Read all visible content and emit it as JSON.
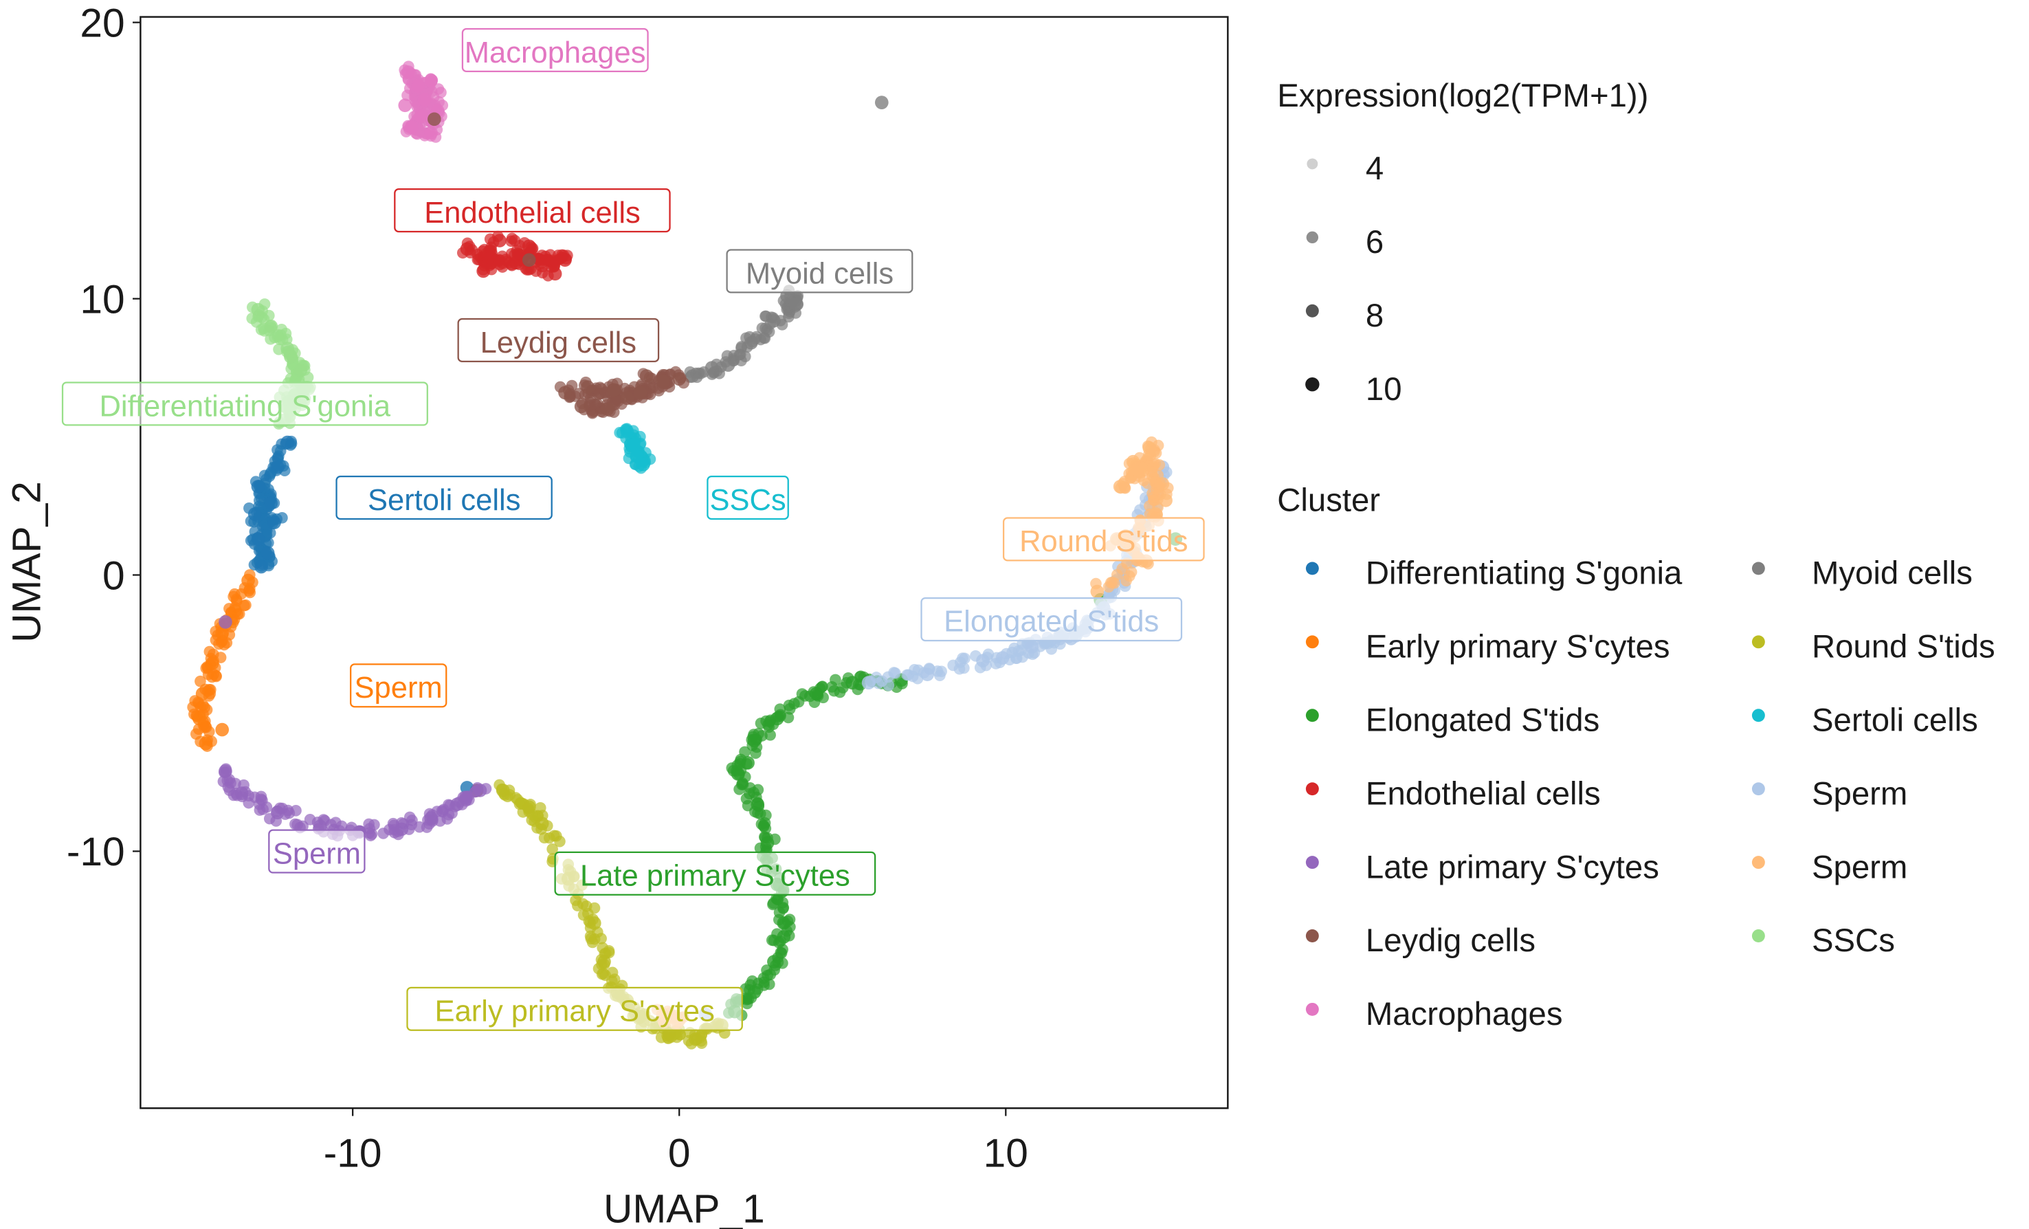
{
  "chart_data": {
    "type": "scatter",
    "title": "",
    "xlabel": "UMAP_1",
    "ylabel": "UMAP_2",
    "xlim": [
      -16.5,
      16.8
    ],
    "ylim": [
      -19.3,
      20.2
    ],
    "xticks": [
      -10,
      0,
      10
    ],
    "yticks": [
      -10,
      0,
      10,
      20
    ],
    "xtick_labels": [
      "-10",
      "0",
      "10"
    ],
    "ytick_labels": [
      "-10",
      "0",
      "10",
      "20"
    ],
    "grid": false,
    "legend_position": "right",
    "size_legend": {
      "title": "Expression(log2(TPM+1))",
      "values": [
        4,
        6,
        8,
        10
      ],
      "labels": [
        "4",
        "6",
        "8",
        "10"
      ]
    },
    "color_legend": {
      "title": "Cluster",
      "entries": [
        {
          "label": "Differentiating S'gonia",
          "color": "#1f77b4"
        },
        {
          "label": "Early primary S'cytes",
          "color": "#ff7f0e"
        },
        {
          "label": "Elongated S'tids",
          "color": "#2ca02c"
        },
        {
          "label": "Endothelial cells",
          "color": "#d62728"
        },
        {
          "label": "Late primary S'cytes",
          "color": "#9467bd"
        },
        {
          "label": "Leydig cells",
          "color": "#8c564b"
        },
        {
          "label": "Macrophages",
          "color": "#e377c2"
        },
        {
          "label": "Myoid cells",
          "color": "#7f7f7f"
        },
        {
          "label": "Round S'tids",
          "color": "#bcbd22"
        },
        {
          "label": "Sertoli cells",
          "color": "#17becf"
        },
        {
          "label": "Sperm",
          "color": "#aec7e8"
        },
        {
          "label": "Sperm",
          "color": "#ffbb78"
        },
        {
          "label": "SSCs",
          "color": "#98df8a"
        }
      ]
    },
    "series": [
      {
        "name": "Macrophages",
        "color": "#e377c2",
        "label_anchor": [
          -3.8,
          18.9
        ],
        "points": [
          [
            -8.3,
            18.2
          ],
          [
            -8.0,
            17.7
          ],
          [
            -7.8,
            17.2
          ],
          [
            -7.9,
            16.6
          ],
          [
            -8.2,
            16.2
          ],
          [
            -7.6,
            16.0
          ],
          [
            -7.4,
            16.8
          ],
          [
            -7.6,
            17.9
          ],
          [
            -8.4,
            17.0
          ]
        ]
      },
      {
        "name": "Endothelial cells",
        "color": "#d62728",
        "label_anchor": [
          -4.5,
          13.1
        ],
        "points": [
          [
            -6.5,
            11.8
          ],
          [
            -5.8,
            11.5
          ],
          [
            -5.0,
            11.3
          ],
          [
            -4.2,
            11.2
          ],
          [
            -3.5,
            11.4
          ],
          [
            -5.5,
            12.1
          ],
          [
            -6.0,
            11.0
          ],
          [
            -4.6,
            11.9
          ],
          [
            -3.8,
            10.9
          ]
        ]
      },
      {
        "name": "Myoid cells",
        "color": "#7f7f7f",
        "label_anchor": [
          4.3,
          10.9
        ],
        "points": [
          [
            0.4,
            7.2
          ],
          [
            1.5,
            7.6
          ],
          [
            2.2,
            8.4
          ],
          [
            2.9,
            9.2
          ],
          [
            3.6,
            9.8
          ],
          [
            3.3,
            10.1
          ],
          [
            1.0,
            7.5
          ],
          [
            6.2,
            17.1
          ]
        ]
      },
      {
        "name": "Leydig cells",
        "color": "#8c564b",
        "label_anchor": [
          -3.7,
          8.4
        ],
        "points": [
          [
            -3.5,
            6.6
          ],
          [
            -2.8,
            6.8
          ],
          [
            -2.0,
            6.7
          ],
          [
            -1.2,
            6.6
          ],
          [
            -0.5,
            7.0
          ],
          [
            -3.0,
            6.1
          ],
          [
            -2.2,
            6.0
          ],
          [
            -1.6,
            6.4
          ],
          [
            0.0,
            7.1
          ],
          [
            -1.0,
            7.2
          ],
          [
            -7.5,
            16.5
          ],
          [
            -4.6,
            11.4
          ],
          [
            -6.2,
            -7.8
          ]
        ]
      },
      {
        "name": "Sertoli cells",
        "color": "#17becf",
        "label_anchor": [
          2.1,
          2.7
        ],
        "points": [
          [
            -1.6,
            5.2
          ],
          [
            -1.4,
            4.7
          ],
          [
            -1.3,
            4.3
          ],
          [
            -1.1,
            4.0
          ]
        ]
      },
      {
        "name": "SSCs",
        "color": "#98df8a",
        "label_anchor": [
          -13.3,
          6.1
        ],
        "points": [
          [
            -12.9,
            9.6
          ],
          [
            -12.5,
            9.0
          ],
          [
            -12.0,
            8.2
          ],
          [
            -11.6,
            7.4
          ],
          [
            -11.5,
            6.7
          ],
          [
            -11.8,
            6.3
          ],
          [
            -12.1,
            5.6
          ],
          [
            -11.9,
            7.9
          ]
        ]
      },
      {
        "name": "Differentiating S'gonia",
        "color": "#1f77b4",
        "label_anchor": [
          -7.2,
          2.7
        ],
        "points": [
          [
            -12.0,
            4.8
          ],
          [
            -12.3,
            3.9
          ],
          [
            -12.9,
            3.2
          ],
          [
            -12.5,
            2.6
          ],
          [
            -13.0,
            2.2
          ],
          [
            -12.4,
            1.9
          ],
          [
            -12.9,
            1.3
          ],
          [
            -12.6,
            0.8
          ],
          [
            -12.8,
            0.3
          ],
          [
            -6.5,
            -7.7
          ]
        ]
      },
      {
        "name": "Early primary S'cytes",
        "color": "#ff7f0e",
        "label_anchor": [
          -8.6,
          -4.1
        ],
        "points": [
          [
            -13.2,
            -0.2
          ],
          [
            -13.6,
            -1.3
          ],
          [
            -14.0,
            -2.1
          ],
          [
            -14.3,
            -3.2
          ],
          [
            -14.6,
            -4.3
          ],
          [
            -14.7,
            -5.2
          ],
          [
            -14.5,
            -6.1
          ],
          [
            -13.9,
            -1.8
          ],
          [
            -14.0,
            -5.6
          ]
        ]
      },
      {
        "name": "Late primary S'cytes",
        "color": "#9467bd",
        "label_anchor": [
          -11.1,
          -10.1
        ],
        "points": [
          [
            -13.9,
            -7.1
          ],
          [
            -13.4,
            -7.9
          ],
          [
            -12.3,
            -8.6
          ],
          [
            -11.0,
            -9.1
          ],
          [
            -9.8,
            -9.3
          ],
          [
            -8.5,
            -9.2
          ],
          [
            -7.6,
            -8.8
          ],
          [
            -6.8,
            -8.3
          ],
          [
            -6.1,
            -7.8
          ],
          [
            -13.9,
            -1.7
          ]
        ]
      },
      {
        "name": "Round S'tids",
        "color": "#bcbd22",
        "label_anchor": [
          -3.2,
          -15.8
        ],
        "points": [
          [
            -5.4,
            -7.8
          ],
          [
            -4.6,
            -8.4
          ],
          [
            -4.2,
            -9.0
          ],
          [
            -3.4,
            -11.0
          ],
          [
            -2.6,
            -12.6
          ],
          [
            -2.3,
            -14.0
          ],
          [
            -1.9,
            -15.1
          ],
          [
            -1.2,
            -16.0
          ],
          [
            -0.3,
            -16.6
          ],
          [
            0.5,
            -16.8
          ],
          [
            1.3,
            -16.3
          ],
          [
            -1.6,
            -15.4
          ]
        ]
      },
      {
        "name": "Elongated S'tids",
        "color": "#2ca02c",
        "label_anchor": [
          1.1,
          -10.9
        ],
        "points": [
          [
            1.7,
            -15.8
          ],
          [
            2.3,
            -15.1
          ],
          [
            2.9,
            -14.0
          ],
          [
            3.2,
            -12.6
          ],
          [
            3.0,
            -11.2
          ],
          [
            2.7,
            -9.7
          ],
          [
            2.4,
            -8.3
          ],
          [
            1.8,
            -7.2
          ],
          [
            2.3,
            -6.0
          ],
          [
            3.0,
            -5.2
          ],
          [
            4.2,
            -4.3
          ],
          [
            5.3,
            -3.9
          ],
          [
            6.8,
            -3.8
          ],
          [
            2.1,
            -6.8
          ],
          [
            3.2,
            -13.1
          ],
          [
            15.2,
            1.3
          ],
          [
            12.9,
            -0.9
          ]
        ]
      },
      {
        "name": "Sperm",
        "color": "#aec7e8",
        "label_anchor": [
          11.4,
          -1.7
        ],
        "points": [
          [
            5.8,
            -3.9
          ],
          [
            7.6,
            -3.6
          ],
          [
            9.3,
            -3.1
          ],
          [
            10.8,
            -2.6
          ],
          [
            12.0,
            -2.3
          ],
          [
            13.0,
            -1.2
          ],
          [
            13.6,
            0.1
          ],
          [
            14.0,
            1.5
          ],
          [
            14.5,
            2.8
          ],
          [
            14.8,
            3.9
          ],
          [
            9.9,
            -3.0
          ],
          [
            12.5,
            -1.9
          ],
          [
            0.8,
            -15.9
          ]
        ]
      },
      {
        "name": "Sperm",
        "color": "#ffbb78",
        "label_anchor": [
          13.0,
          1.2
        ],
        "points": [
          [
            13.5,
            3.2
          ],
          [
            14.1,
            3.8
          ],
          [
            14.4,
            4.6
          ],
          [
            14.8,
            3.3
          ],
          [
            14.6,
            2.2
          ],
          [
            13.4,
            1.3
          ],
          [
            14.3,
            0.5
          ],
          [
            12.8,
            -0.6
          ],
          [
            13.9,
            4.1
          ],
          [
            14.9,
            2.7
          ],
          [
            0.0,
            -16.1
          ],
          [
            -0.5,
            -15.9
          ]
        ]
      }
    ],
    "annotations": [
      "Macrophages",
      "Endothelial cells",
      "Myoid cells",
      "Leydig cells",
      "SSCs",
      "Differentiating S'gonia",
      "Sertoli cells",
      "Sperm",
      "Sperm",
      "Early primary S'cytes",
      "Late primary S'cytes",
      "Elongated S'tids",
      "Round S'tids"
    ]
  }
}
